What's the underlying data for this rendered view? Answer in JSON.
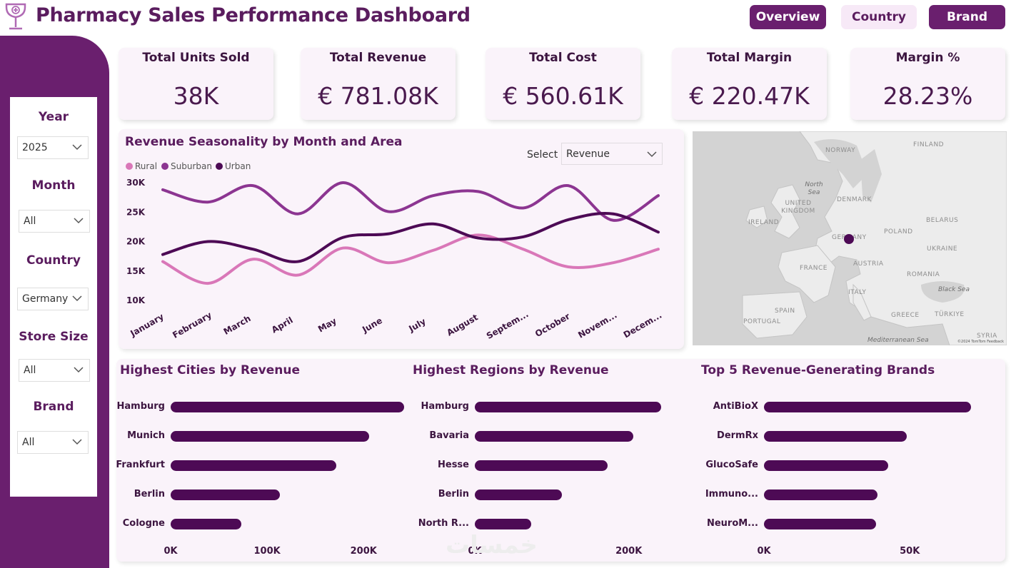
{
  "header": {
    "title": "Pharmacy Sales Performance Dashboard",
    "nav": [
      "Overview",
      "Country",
      "Brand"
    ]
  },
  "filters": {
    "year": {
      "label": "Year",
      "value": "2025"
    },
    "month": {
      "label": "Month",
      "value": "All"
    },
    "country": {
      "label": "Country",
      "value": "Germany"
    },
    "store_size": {
      "label": "Store Size",
      "value": "All"
    },
    "brand": {
      "label": "Brand",
      "value": "All"
    }
  },
  "kpis": [
    {
      "title": "Total Units Sold",
      "value": "38K"
    },
    {
      "title": "Total Revenue",
      "value": "€ 781.08K"
    },
    {
      "title": "Total Cost",
      "value": "€ 560.61K"
    },
    {
      "title": "Total Margin",
      "value": "€ 220.47K"
    },
    {
      "title": "Margin %",
      "value": "28.23%"
    }
  ],
  "line_panel": {
    "select_label": "Select",
    "select_value": "Revenue"
  },
  "map": {
    "labels": [
      "NORWAY",
      "FINLAND",
      "North Sea",
      "DENMARK",
      "UNITED KINGDOM",
      "IRELAND",
      "BELARUS",
      "GERMANY",
      "POLAND",
      "UKRAINE",
      "FRANCE",
      "AUSTRIA",
      "ROMANIA",
      "Black Sea",
      "ITALY",
      "SPAIN",
      "PORTUGAL",
      "GREECE",
      "TÜRKIYE",
      "SYRIA",
      "Mediterranean Sea"
    ],
    "marker": "Germany",
    "attribution": "©2024 TomTom Feedback"
  },
  "watermark": "خمسات",
  "colors": {
    "primary": "#6a1f6e",
    "rural": "#d977b8",
    "suburban": "#8c3591",
    "urban": "#4d0a55",
    "bar": "#4d0a55"
  },
  "chart_data": [
    {
      "type": "line",
      "title": "Revenue Seasonality by Month and Area",
      "categories": [
        "January",
        "February",
        "March",
        "April",
        "May",
        "June",
        "July",
        "August",
        "Septem...",
        "October",
        "Novem...",
        "Decem..."
      ],
      "series": [
        {
          "name": "Rural",
          "color": "#d977b8",
          "values": [
            16600,
            12900,
            17000,
            14300,
            18900,
            16400,
            18500,
            21100,
            18700,
            15700,
            16400,
            18700
          ]
        },
        {
          "name": "Suburban",
          "color": "#8c3591",
          "values": [
            28800,
            26700,
            29500,
            24700,
            30000,
            25100,
            27800,
            28500,
            25700,
            29500,
            23600,
            27800
          ]
        },
        {
          "name": "Urban",
          "color": "#4d0a55",
          "values": [
            17800,
            20000,
            18700,
            16600,
            20700,
            21300,
            23000,
            20600,
            20800,
            23700,
            24700,
            21600
          ]
        }
      ],
      "yticks": [
        "30K",
        "25K",
        "20K",
        "15K",
        "10K"
      ],
      "ylim": [
        10000,
        30000
      ],
      "legend": "top-left"
    },
    {
      "type": "bar",
      "orientation": "horizontal",
      "title": "Highest Cities by Revenue",
      "categories": [
        "Hamburg",
        "Munich",
        "Frankfurt",
        "Berlin",
        "Cologne"
      ],
      "values": [
        242000,
        206000,
        172000,
        113000,
        73000
      ],
      "xticks": [
        "0K",
        "100K",
        "200K"
      ],
      "xtick_values": [
        0,
        100000,
        200000
      ]
    },
    {
      "type": "bar",
      "orientation": "horizontal",
      "title": "Highest Regions by Revenue",
      "categories": [
        "Hamburg",
        "Bavaria",
        "Hesse",
        "Berlin",
        "North R..."
      ],
      "values": [
        242000,
        206000,
        172000,
        113000,
        73000
      ],
      "xticks": [
        "0K",
        "200K"
      ],
      "xtick_values": [
        0,
        200000
      ]
    },
    {
      "type": "bar",
      "orientation": "horizontal",
      "title": "Top 5 Revenue-Generating Brands",
      "categories": [
        "AntiBioX",
        "DermRx",
        "GlucoSafe",
        "Immuno...",
        "NeuroM..."
      ],
      "values": [
        71000,
        49000,
        42500,
        39000,
        38500
      ],
      "xticks": [
        "0K",
        "50K"
      ],
      "xtick_values": [
        0,
        50000
      ]
    }
  ]
}
